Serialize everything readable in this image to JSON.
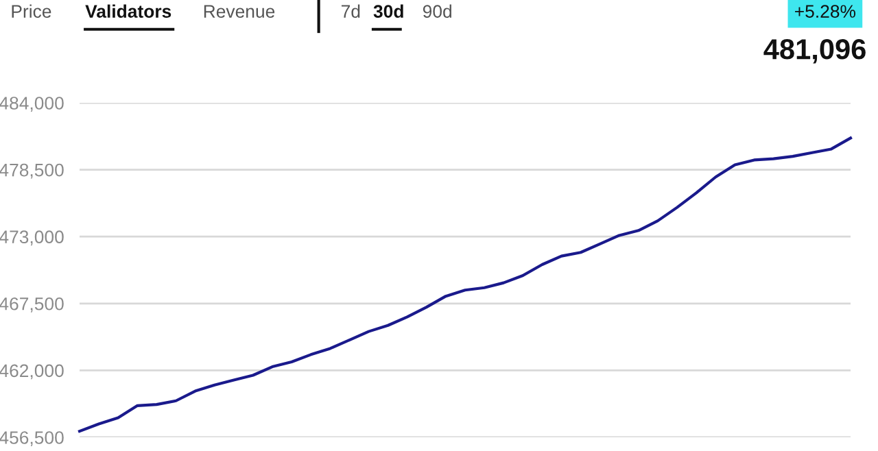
{
  "chart_data": {
    "type": "line",
    "categories": [
      null,
      null,
      null,
      null,
      null,
      null,
      null,
      null,
      null,
      null,
      null,
      null,
      null,
      null,
      null,
      null,
      null,
      null,
      null,
      null,
      null,
      null,
      null,
      null,
      null,
      null,
      null,
      null,
      null,
      null,
      null,
      null,
      null,
      null,
      null,
      null,
      null,
      null,
      null,
      null,
      null
    ],
    "series": [
      {
        "color": "#1a1a8c",
        "values": [
          457000,
          457600,
          458100,
          459100,
          459200,
          459500,
          460300,
          460800,
          461200,
          461600,
          462300,
          462700,
          463300,
          463800,
          464500,
          465200,
          465700,
          466400,
          467200,
          468100,
          468600,
          468800,
          469200,
          469800,
          470700,
          471400,
          471700,
          472400,
          473100,
          473500,
          474300,
          475400,
          476600,
          477900,
          478900,
          479300,
          479400,
          479600,
          479900,
          480200,
          481100
        ]
      }
    ],
    "ylim": [
      456500,
      484000
    ],
    "yticks": [
      {
        "value": 456500,
        "label": "456,500"
      },
      {
        "value": 462000,
        "label": "462,000"
      },
      {
        "value": 467500,
        "label": "467,500"
      },
      {
        "value": 473000,
        "label": "473,000"
      },
      {
        "value": 478500,
        "label": "478,500"
      },
      {
        "value": 484000,
        "label": "484,000"
      }
    ],
    "grid": "y",
    "tick_labels": "y",
    "legend": false,
    "marker": "none",
    "line_style": "solid",
    "annotations": [
      "Price",
      "Validators",
      "Revenue",
      "7d",
      "30d",
      "90d",
      "+5.28%",
      "481,096"
    ]
  }
}
